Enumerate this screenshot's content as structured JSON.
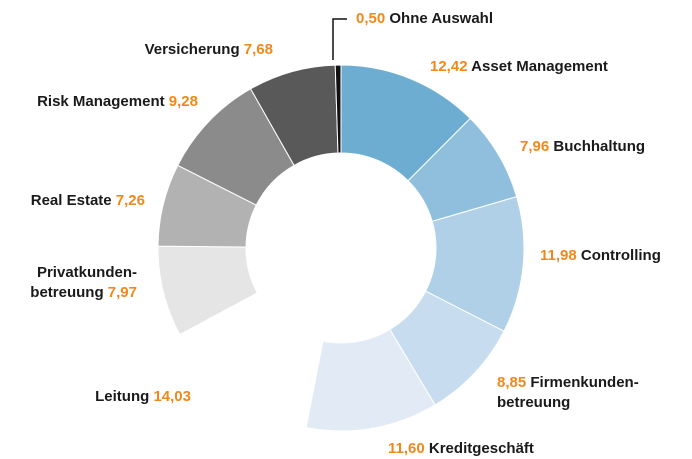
{
  "chart_data": {
    "type": "donut",
    "categories": [
      "Asset Management",
      "Buchhaltung",
      "Controlling",
      "Firmenkunden-\nbetreuung",
      "Kreditgeschäft",
      "Leitung",
      "Privatkunden-\nbetreuung",
      "Real Estate",
      "Risk Management",
      "Versicherung",
      "Ohne Auswahl"
    ],
    "values": [
      12.42,
      7.96,
      11.98,
      8.85,
      11.6,
      14.03,
      7.97,
      7.26,
      9.28,
      7.68,
      0.5
    ],
    "value_labels": [
      "12,42",
      "7,96",
      "11,98",
      "8,85",
      "11,60",
      "14,03",
      "7,97",
      "7,26",
      "9,28",
      "7,68",
      "0,50"
    ],
    "colors": [
      "#6dadd1",
      "#8fbfdd",
      "#afd0e7",
      "#c7dcee",
      "#e2ebf5",
      "#ffffff",
      "#e5e5e5",
      "#b2b2b2",
      "#8b8b8b",
      "#595959",
      "#111111"
    ]
  }
}
